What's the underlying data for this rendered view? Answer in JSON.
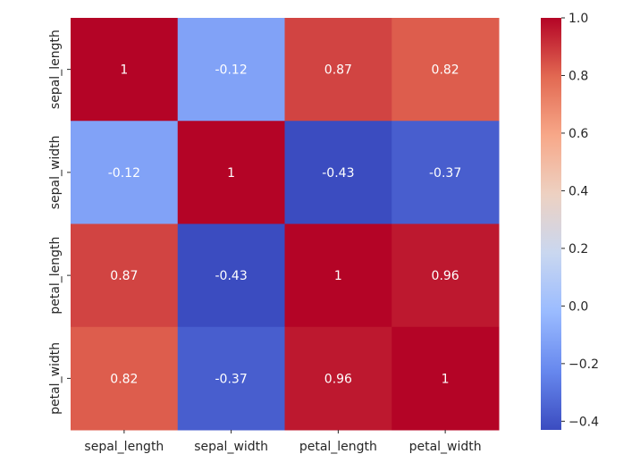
{
  "chart_data": {
    "type": "heatmap",
    "title": "",
    "xlabel": "",
    "ylabel": "",
    "x_categories": [
      "sepal_length",
      "sepal_width",
      "petal_length",
      "petal_width"
    ],
    "y_categories": [
      "sepal_length",
      "sepal_width",
      "petal_length",
      "petal_width"
    ],
    "values": [
      [
        1.0,
        -0.12,
        0.87,
        0.82
      ],
      [
        -0.12,
        1.0,
        -0.43,
        -0.37
      ],
      [
        0.87,
        -0.43,
        1.0,
        0.96
      ],
      [
        0.82,
        -0.37,
        0.96,
        1.0
      ]
    ],
    "annotations": [
      [
        "1",
        "-0.12",
        "0.87",
        "0.82"
      ],
      [
        "-0.12",
        "1",
        "-0.43",
        "-0.37"
      ],
      [
        "0.87",
        "-0.43",
        "1",
        "0.96"
      ],
      [
        "0.82",
        "-0.37",
        "0.96",
        "1"
      ]
    ],
    "colormap": "coolwarm",
    "vmin": -0.43,
    "vmax": 1.0,
    "colorbar": {
      "ticks": [
        1.0,
        0.8,
        0.6,
        0.4,
        0.2,
        0.0,
        -0.2,
        -0.4
      ],
      "tick_labels": [
        "1.0",
        "0.8",
        "0.6",
        "0.4",
        "0.2",
        "0.0",
        "−0.2",
        "−0.4"
      ],
      "placement": "right"
    },
    "colormap_stops": [
      "#3b4cc0",
      "#6788ee",
      "#9abbff",
      "#c9d7f0",
      "#edd1c2",
      "#f7a889",
      "#e26952",
      "#b40426"
    ]
  }
}
